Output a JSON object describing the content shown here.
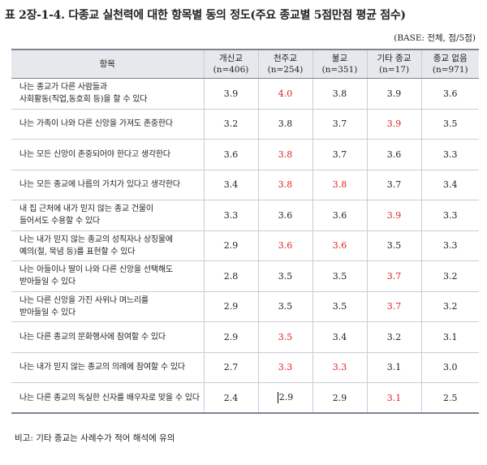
{
  "title": "표 2장-1-4. 다종교 실천력에 대한 항목별 동의 정도(주요 종교별 5점만점 평균 점수)",
  "base_note": "(BASE: 전체, 점/5점)",
  "table": {
    "item_header": "항목",
    "columns": [
      {
        "name": "개신교",
        "n": "(n=406)"
      },
      {
        "name": "천주교",
        "n": "(n=254)"
      },
      {
        "name": "불교",
        "n": "(n=351)"
      },
      {
        "name": "기타 종교",
        "n": "(n=17)"
      },
      {
        "name": "종교 없음",
        "n": "(n=971)"
      }
    ],
    "rows": [
      {
        "lines": [
          "나는 종교가 다른 사람들과",
          "사회활동(직업,동호회 등)을 할 수 있다"
        ],
        "values": [
          "3.9",
          "4.0",
          "3.8",
          "3.9",
          "3.6"
        ],
        "highlight": [
          1
        ]
      },
      {
        "lines": [
          "나는 가족이 나와 다른 신앙을 가져도 존중한다"
        ],
        "values": [
          "3.2",
          "3.8",
          "3.7",
          "3.9",
          "3.5"
        ],
        "highlight": [
          3
        ]
      },
      {
        "lines": [
          "나는 모든 신앙이 존중되어야 한다고 생각한다"
        ],
        "values": [
          "3.6",
          "3.8",
          "3.7",
          "3.6",
          "3.3"
        ],
        "highlight": [
          1
        ]
      },
      {
        "lines": [
          "나는 모든 종교에 나름의 가치가 있다고 생각한다"
        ],
        "values": [
          "3.4",
          "3.8",
          "3.8",
          "3.7",
          "3.4"
        ],
        "highlight": [
          1,
          2
        ]
      },
      {
        "lines": [
          "내 집 근처에 내가 믿지 않는 종교 건물이",
          "들어서도 수용할 수 있다"
        ],
        "values": [
          "3.3",
          "3.6",
          "3.6",
          "3.9",
          "3.3"
        ],
        "highlight": [
          3
        ]
      },
      {
        "lines": [
          "나는 내가 믿지 않는 종교의 성직자나 상징물에",
          "예의(절, 묵념 등)를 표현할 수 있다"
        ],
        "values": [
          "2.9",
          "3.6",
          "3.6",
          "3.5",
          "3.3"
        ],
        "highlight": [
          1,
          2
        ]
      },
      {
        "lines": [
          "나는 아들이나 딸이 나와 다른 신앙을 선택해도",
          "받아들일 수 있다"
        ],
        "values": [
          "2.8",
          "3.5",
          "3.5",
          "3.7",
          "3.2"
        ],
        "highlight": [
          3
        ]
      },
      {
        "lines": [
          "나는 다른 신앙을 가진 사위나 며느리를",
          "받아들일 수 있다"
        ],
        "values": [
          "2.9",
          "3.5",
          "3.5",
          "3.7",
          "3.2"
        ],
        "highlight": [
          3
        ]
      },
      {
        "lines": [
          "나는 다른 종교의 문화행사에 참여할 수 있다"
        ],
        "values": [
          "2.9",
          "3.5",
          "3.4",
          "3.2",
          "3.1"
        ],
        "highlight": [
          1
        ]
      },
      {
        "lines": [
          "나는 내가 믿지 않는 종교의 의례에 참여할 수 있다"
        ],
        "values": [
          "2.7",
          "3.3",
          "3.3",
          "3.1",
          "3.0"
        ],
        "highlight": [
          1,
          2
        ]
      },
      {
        "lines": [
          "나는 다른 종교의 독실한 신자를 배우자로 맞을 수 있다"
        ],
        "values": [
          "2.4",
          "2.9",
          "2.9",
          "3.1",
          "2.5"
        ],
        "highlight": [
          3
        ]
      }
    ]
  },
  "footnote": "비고: 기타 종교는 사례수가 적어 해석에 유의",
  "colors": {
    "highlight": "#e02020",
    "header_bg": "#e7e8ec",
    "rule": "#7d8591"
  }
}
